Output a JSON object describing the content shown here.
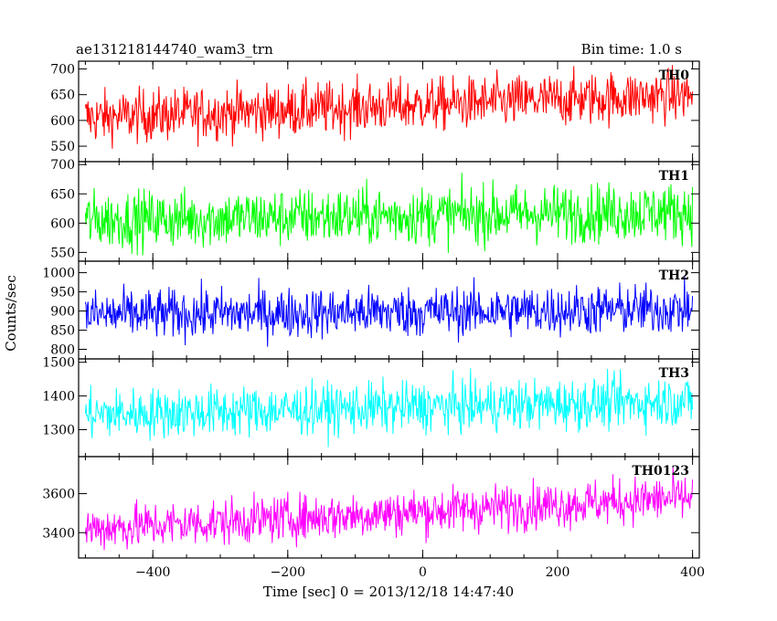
{
  "header": {
    "title": "ae131218144740_wam3_trn",
    "bin_time": "Bin time: 1.0 s"
  },
  "chart_data": {
    "type": "line",
    "xlabel": "Time [sec] 0 = 2013/12/18 14:47:40",
    "ylabel": "Counts/sec",
    "xlim": [
      -510,
      410
    ],
    "x_ticks": [
      -400,
      -200,
      0,
      200,
      400
    ],
    "x_ticklabels": [
      "−400",
      "−200",
      "0",
      "200",
      "400"
    ],
    "x_range": [
      -500,
      400
    ],
    "bin_time_s": 1.0,
    "panels": [
      {
        "name": "TH0",
        "color": "#ff0000",
        "ylim": [
          520,
          715
        ],
        "y_ticks": [
          550,
          600,
          650,
          700
        ],
        "y_ticklabels": [
          "550",
          "600",
          "650",
          "700"
        ],
        "mean_start": 605,
        "mean_end": 650,
        "scatter": 26,
        "spike_range": [
          545,
          715
        ]
      },
      {
        "name": "TH1",
        "color": "#00ff00",
        "ylim": [
          535,
          705
        ],
        "y_ticks": [
          550,
          600,
          650,
          700
        ],
        "y_ticklabels": [
          "550",
          "600",
          "650",
          "700"
        ],
        "mean_start": 605,
        "mean_end": 620,
        "scatter": 25,
        "spike_range": [
          545,
          700
        ]
      },
      {
        "name": "TH2",
        "color": "#0000ff",
        "ylim": [
          775,
          1030
        ],
        "y_ticks": [
          800,
          850,
          900,
          950,
          1000
        ],
        "y_ticklabels": [
          "800",
          "850",
          "900",
          "950",
          "1000"
        ],
        "mean_start": 890,
        "mean_end": 905,
        "scatter": 33,
        "spike_range": [
          780,
          1020
        ]
      },
      {
        "name": "TH3",
        "color": "#00ffff",
        "ylim": [
          1220,
          1510
        ],
        "y_ticks": [
          1300,
          1400,
          1500
        ],
        "y_ticklabels": [
          "1300",
          "1400",
          "1500"
        ],
        "mean_start": 1345,
        "mean_end": 1385,
        "scatter": 38,
        "spike_range": [
          1235,
          1505
        ]
      },
      {
        "name": "TH0123",
        "color": "#ff00ff",
        "ylim": [
          3270,
          3790
        ],
        "y_ticks": [
          3400,
          3600
        ],
        "y_ticklabels": [
          "3400",
          "3600"
        ],
        "mean_start": 3420,
        "mean_end": 3580,
        "scatter": 60,
        "spike_range": [
          3280,
          3780
        ]
      }
    ]
  }
}
